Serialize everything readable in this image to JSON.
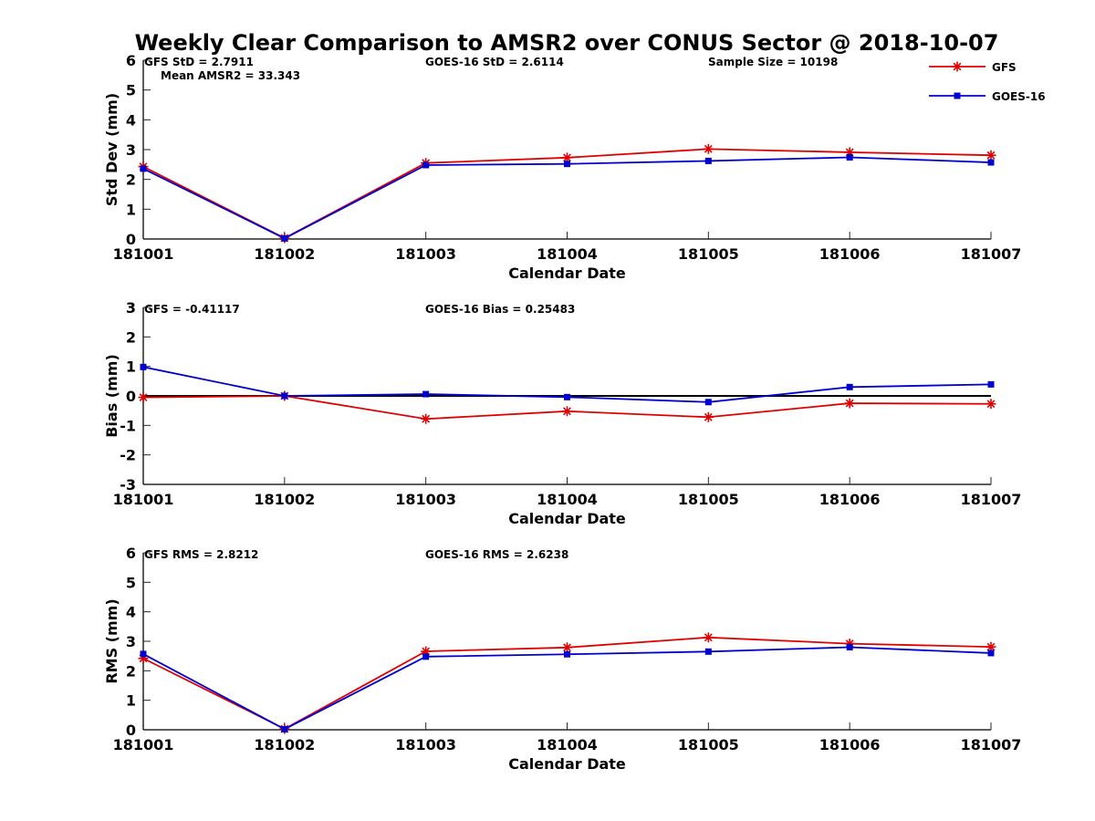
{
  "figure_title": "Weekly Clear Comparison to AMSR2 over CONUS Sector @ 2018-10-07",
  "legend": {
    "position": "top-right",
    "entries": [
      {
        "name": "GFS",
        "color": "#e00000",
        "marker": "asterisk"
      },
      {
        "name": "GOES-16",
        "color": "#0000d0",
        "marker": "square"
      }
    ]
  },
  "chart_data": [
    {
      "type": "line",
      "title": "",
      "xlabel": "Calendar Date",
      "ylabel": "Std Dev (mm)",
      "categories": [
        "181001",
        "181002",
        "181003",
        "181004",
        "181005",
        "181006",
        "181007"
      ],
      "ylim": [
        0,
        6
      ],
      "yticks": [
        "0",
        "1",
        "2",
        "3",
        "4",
        "5",
        "6"
      ],
      "zero_line": false,
      "series": [
        {
          "name": "GFS",
          "color": "#e00000",
          "marker": "asterisk",
          "values": [
            2.43,
            0.03,
            2.55,
            2.73,
            3.02,
            2.91,
            2.81
          ]
        },
        {
          "name": "GOES-16",
          "color": "#0000d0",
          "marker": "square",
          "values": [
            2.36,
            0.02,
            2.48,
            2.52,
            2.62,
            2.74,
            2.57
          ]
        }
      ],
      "annotations": [
        {
          "text": "GFS StD = 2.7911",
          "slot": "left"
        },
        {
          "text": "Mean AMSR2 = 33.343",
          "slot": "left-second-line"
        },
        {
          "text": "GOES-16 StD = 2.6114",
          "slot": "middle"
        },
        {
          "text": "Sample Size = 10198",
          "slot": "right"
        }
      ]
    },
    {
      "type": "line",
      "title": "",
      "xlabel": "Calendar Date",
      "ylabel": "Bias (mm)",
      "categories": [
        "181001",
        "181002",
        "181003",
        "181004",
        "181005",
        "181006",
        "181007"
      ],
      "ylim": [
        -3,
        3
      ],
      "yticks": [
        "-3",
        "-2",
        "-1",
        "0",
        "1",
        "2",
        "3"
      ],
      "zero_line": true,
      "series": [
        {
          "name": "GFS",
          "color": "#e00000",
          "marker": "asterisk",
          "values": [
            -0.05,
            0.0,
            -0.78,
            -0.52,
            -0.72,
            -0.25,
            -0.27
          ]
        },
        {
          "name": "GOES-16",
          "color": "#0000d0",
          "marker": "square",
          "values": [
            0.98,
            0.0,
            0.06,
            -0.04,
            -0.21,
            0.3,
            0.39
          ]
        }
      ],
      "annotations": [
        {
          "text": "GFS = -0.41117",
          "slot": "left"
        },
        {
          "text": "GOES-16 Bias  = 0.25483",
          "slot": "middle"
        }
      ]
    },
    {
      "type": "line",
      "title": "",
      "xlabel": "Calendar Date",
      "ylabel": "RMS (mm)",
      "categories": [
        "181001",
        "181002",
        "181003",
        "181004",
        "181005",
        "181006",
        "181007"
      ],
      "ylim": [
        0,
        6
      ],
      "yticks": [
        "0",
        "1",
        "2",
        "3",
        "4",
        "5",
        "6"
      ],
      "zero_line": false,
      "series": [
        {
          "name": "GFS",
          "color": "#e00000",
          "marker": "asterisk",
          "values": [
            2.42,
            0.03,
            2.66,
            2.79,
            3.13,
            2.92,
            2.81
          ]
        },
        {
          "name": "GOES-16",
          "color": "#0000d0",
          "marker": "square",
          "values": [
            2.57,
            0.02,
            2.48,
            2.56,
            2.65,
            2.8,
            2.6
          ]
        }
      ],
      "annotations": [
        {
          "text": "GFS RMS = 2.8212",
          "slot": "left"
        },
        {
          "text": "GOES-16 RMS = 2.6238",
          "slot": "middle"
        }
      ]
    }
  ]
}
